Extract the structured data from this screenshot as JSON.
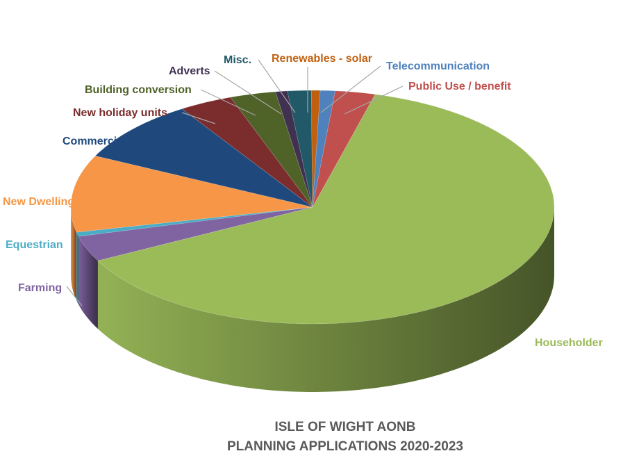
{
  "chart_data": {
    "type": "pie",
    "style": "3d-exploded-none",
    "title_lines": [
      "ISLE OF WIGHT AONB",
      "PLANNING APPLICATIONS 2020-2023"
    ],
    "series": [
      {
        "name": "Householder",
        "value": 64.0,
        "color": "#9BBB59"
      },
      {
        "name": "Farming",
        "value": 3.6,
        "color": "#8064A2"
      },
      {
        "name": "Equestrian",
        "value": 0.6,
        "color": "#4BACC6"
      },
      {
        "name": "New Dwelling",
        "value": 10.8,
        "color": "#F79646"
      },
      {
        "name": "Commercial",
        "value": 8.8,
        "color": "#1F497D"
      },
      {
        "name": "New holiday units",
        "value": 3.6,
        "color": "#7B2C2C"
      },
      {
        "name": "Building conversion",
        "value": 3.1,
        "color": "#4F6228"
      },
      {
        "name": "Adverts",
        "value": 0.8,
        "color": "#403151"
      },
      {
        "name": "Misc.",
        "value": 1.6,
        "color": "#215968"
      },
      {
        "name": "Renewables - solar",
        "value": 0.6,
        "color": "#C0600E"
      },
      {
        "name": "Telecommunication",
        "value": 1.0,
        "color": "#4F81BD"
      },
      {
        "name": "Public Use / benefit",
        "value": 2.7,
        "color": "#C0504D"
      }
    ],
    "label_colors": {
      "Householder": "#9BBB59",
      "Farming": "#8064A2",
      "Equestrian": "#4BACC6",
      "New Dwelling": "#F79646",
      "Commercial": "#1F497D",
      "New holiday units": "#7B2C2C",
      "Building conversion": "#4F6228",
      "Adverts": "#403151",
      "Misc.": "#215968",
      "Renewables - solar": "#C0600E",
      "Telecommunication": "#4F81BD",
      "Public Use / benefit": "#C0504D"
    }
  }
}
